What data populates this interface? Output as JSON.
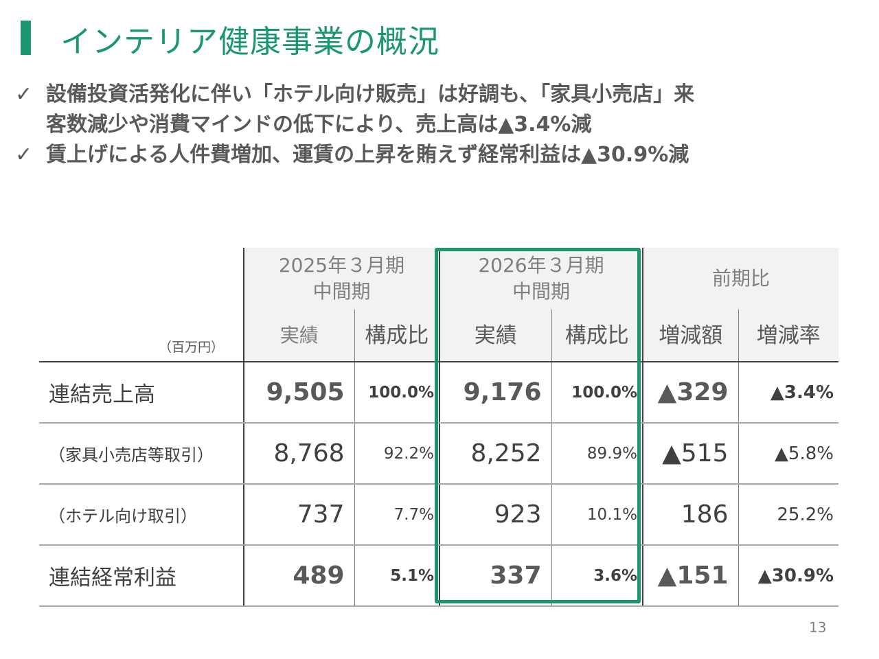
{
  "title": "インテリア健康事業の概況",
  "bullets": [
    {
      "check": "✓",
      "lines": [
        "設備投資活発化に伴い「ホテル向け販売」は好調も、「家具小売店」来",
        "客数減少や消費マインドの低下により、売上高は▲3.4%減"
      ]
    },
    {
      "check": "✓",
      "lines": [
        "賃上げによる人件費増加、運賃の上昇を賄えず経常利益は▲30.9%減"
      ]
    }
  ],
  "table": {
    "unit": "（百万円）",
    "period_prev": [
      "2025年３月期",
      "中間期"
    ],
    "period_curr": [
      "2026年３月期",
      "中間期"
    ],
    "comparison": "前期比",
    "col_actual": "実績",
    "col_ratio": "構成比",
    "col_diff": "増減額",
    "col_rate": "増減率",
    "rows": [
      {
        "label": "連結売上高",
        "prev": "9,505",
        "prev_ratio": "100.0%",
        "curr": "9,176",
        "curr_ratio": "100.0%",
        "diff": "▲329",
        "rate": "▲3.4%"
      },
      {
        "label": "（家具小売店等取引）",
        "prev": "8,768",
        "prev_ratio": "92.2%",
        "curr": "8,252",
        "curr_ratio": "89.9%",
        "diff": "▲515",
        "rate": "▲5.8%"
      },
      {
        "label": "（ホテル向け取引）",
        "prev": "737",
        "prev_ratio": "7.7%",
        "curr": "923",
        "curr_ratio": "10.1%",
        "diff": "186",
        "rate": "25.2%"
      },
      {
        "label": "連結経常利益",
        "prev": "489",
        "prev_ratio": "5.1%",
        "curr": "337",
        "curr_ratio": "3.6%",
        "diff": "▲151",
        "rate": "▲30.9%"
      }
    ]
  },
  "page_number": "13",
  "colors": {
    "accent": "#1a9670",
    "text": "#595959",
    "header_bg": "#f2f2f2"
  }
}
